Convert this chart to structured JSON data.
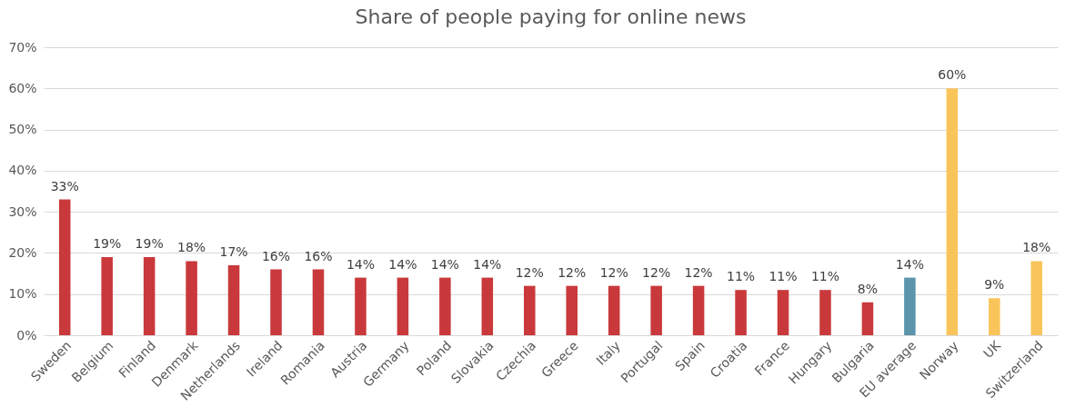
{
  "chart_data": {
    "type": "bar",
    "title": "Share of people paying for online news",
    "categories": [
      "Sweden",
      "Belgium",
      "Finland",
      "Denmark",
      "Netherlands",
      "Ireland",
      "Romania",
      "Austria",
      "Germany",
      "Poland",
      "Slovakia",
      "Czechia",
      "Greece",
      "Italy",
      "Portugal",
      "Spain",
      "Croatia",
      "France",
      "Hungary",
      "Bulgaria",
      "EU average",
      "Norway",
      "UK",
      "Switzerland"
    ],
    "values": [
      33,
      19,
      19,
      18,
      17,
      16,
      16,
      14,
      14,
      14,
      14,
      12,
      12,
      12,
      12,
      12,
      11,
      11,
      11,
      8,
      14,
      60,
      9,
      18
    ],
    "colors": [
      "#c9393b",
      "#c9393b",
      "#c9393b",
      "#c9393b",
      "#c9393b",
      "#c9393b",
      "#c9393b",
      "#c9393b",
      "#c9393b",
      "#c9393b",
      "#c9393b",
      "#c9393b",
      "#c9393b",
      "#c9393b",
      "#c9393b",
      "#c9393b",
      "#c9393b",
      "#c9393b",
      "#c9393b",
      "#c9393b",
      "#5b95ab",
      "#f9c55b",
      "#f9c55b",
      "#f9c55b"
    ],
    "value_labels": [
      "33%",
      "19%",
      "19%",
      "18%",
      "17%",
      "16%",
      "16%",
      "14%",
      "14%",
      "14%",
      "14%",
      "12%",
      "12%",
      "12%",
      "12%",
      "12%",
      "11%",
      "11%",
      "11%",
      "8%",
      "14%",
      "60%",
      "9%",
      "18%"
    ],
    "ylim": [
      0,
      70
    ],
    "yticks": [
      {
        "value": 0,
        "label": "0%"
      },
      {
        "value": 10,
        "label": "10%"
      },
      {
        "value": 20,
        "label": "20%"
      },
      {
        "value": 30,
        "label": "30%"
      },
      {
        "value": 40,
        "label": "40%"
      },
      {
        "value": 50,
        "label": "50%"
      },
      {
        "value": 60,
        "label": "60%"
      },
      {
        "value": 70,
        "label": "70%"
      }
    ],
    "grid": "y",
    "legend": false
  }
}
